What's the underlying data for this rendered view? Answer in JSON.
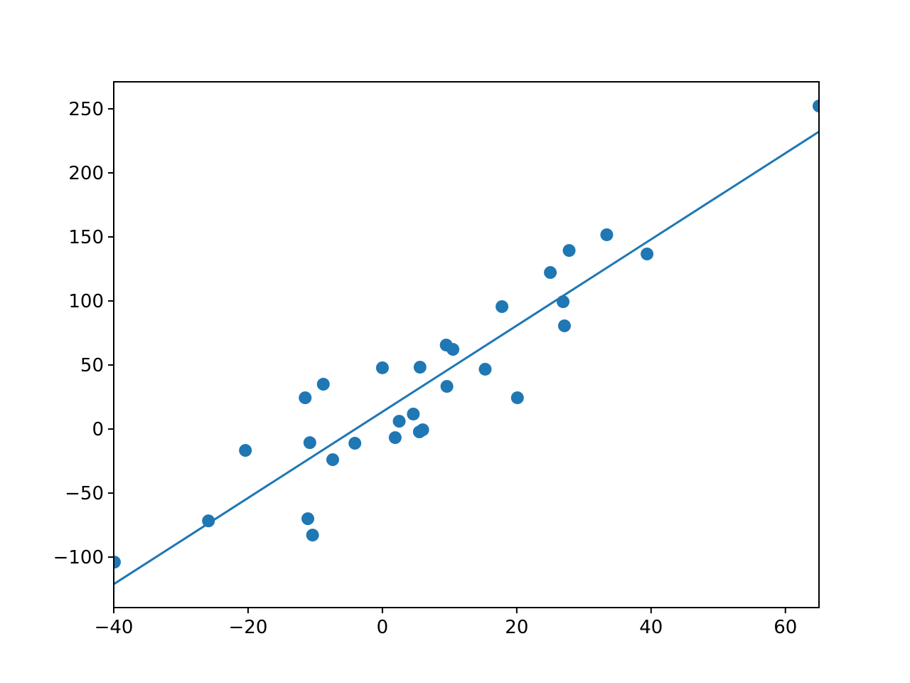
{
  "chart_data": {
    "type": "scatter",
    "xlim": [
      -40,
      65
    ],
    "ylim": [
      -139.4,
      271.1
    ],
    "xticks": [
      {
        "value": -40,
        "label": "−40"
      },
      {
        "value": -20,
        "label": "−20"
      },
      0,
      20,
      40,
      60
    ],
    "yticks": [
      {
        "value": -100,
        "label": "−100"
      },
      {
        "value": -50,
        "label": "−50"
      },
      0,
      50,
      100,
      150,
      200,
      250
    ],
    "series": [
      {
        "type": "scatter",
        "color": "#1f77b4",
        "x": [
          -39.9,
          -25.9,
          -20.4,
          -11.5,
          -10.8,
          -8.8,
          -11.1,
          -10.4,
          -7.4,
          -4.1,
          0,
          1.9,
          2.5,
          4.6,
          5.6,
          5.5,
          6.0,
          9.5,
          10.5,
          9.6,
          15.3,
          17.8,
          20.1,
          25.0,
          26.9,
          27.1,
          27.8,
          33.4,
          39.4,
          65.0
        ],
        "values": [
          -103.9,
          -71.7,
          -16.7,
          24.4,
          -10.6,
          35,
          -70,
          -82.8,
          -23.9,
          -11.1,
          47.8,
          -6.7,
          6.1,
          11.7,
          48.3,
          -2.2,
          -0.6,
          65.6,
          62.2,
          33.3,
          46.7,
          95.6,
          24.4,
          122.2,
          99.4,
          80.6,
          139.4,
          151.7,
          136.7,
          252.2
        ]
      },
      {
        "type": "line",
        "color": "#1f77b4",
        "x": [
          -40,
          65
        ],
        "values": [
          -121.1,
          232.2
        ]
      }
    ]
  }
}
